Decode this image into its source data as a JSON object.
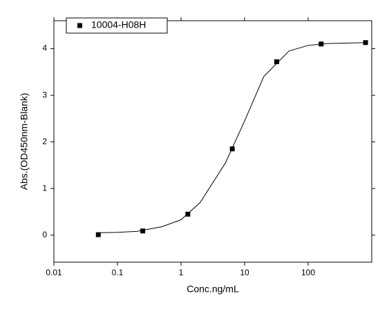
{
  "chart_data": {
    "type": "scatter",
    "xlabel": "Conc.ng/mL",
    "ylabel": "Abs.(OD450nm-Blank)",
    "xscale": "log",
    "xlim": [
      0.01,
      1000
    ],
    "ylim": [
      -0.58,
      4.6
    ],
    "xticks": [
      0.01,
      0.1,
      1,
      10,
      100
    ],
    "yticks": [
      0,
      1,
      2,
      3,
      4
    ],
    "legend": "upper left",
    "series": [
      {
        "name": "10004-H08H",
        "color": "#000000",
        "marker": "square",
        "x": [
          0.05,
          0.25,
          1.28,
          6.4,
          32,
          160,
          800
        ],
        "values": [
          0.01,
          0.09,
          0.45,
          1.85,
          3.72,
          4.1,
          4.13
        ]
      },
      {
        "color": "#000000",
        "marker": "line",
        "x": [
          0.05,
          0.1,
          0.2,
          0.5,
          1,
          2,
          5,
          10,
          20,
          50,
          100,
          200,
          800
        ],
        "values": [
          0.05,
          0.06,
          0.08,
          0.18,
          0.33,
          0.7,
          1.55,
          2.45,
          3.4,
          3.95,
          4.07,
          4.11,
          4.13
        ]
      }
    ]
  }
}
